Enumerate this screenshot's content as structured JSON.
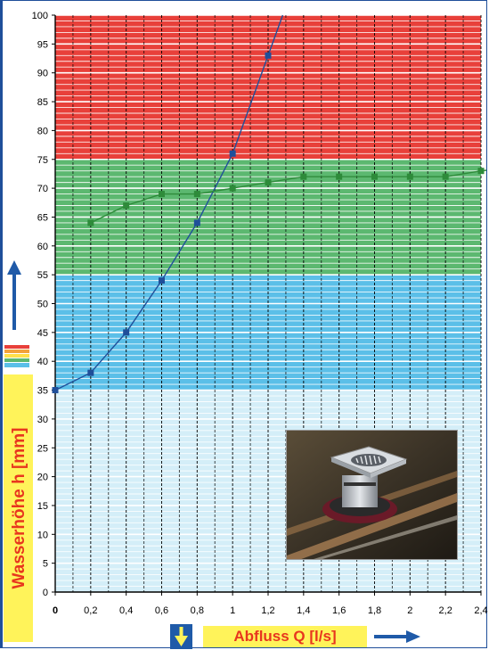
{
  "chart_data": {
    "type": "line",
    "xlabel": "Abfluss Q [l/s]",
    "ylabel": "Wasserhöhe h [mm]",
    "xlim": [
      0,
      2.4
    ],
    "ylim": [
      0,
      100
    ],
    "x_ticks": [
      "0",
      "0,2",
      "0,4",
      "0,6",
      "0,8",
      "1",
      "1,2",
      "1,4",
      "1,6",
      "1,8",
      "2",
      "2,2",
      "2,4"
    ],
    "y_ticks": [
      "0",
      "5",
      "10",
      "15",
      "20",
      "25",
      "30",
      "35",
      "40",
      "45",
      "50",
      "55",
      "60",
      "65",
      "70",
      "75",
      "80",
      "85",
      "90",
      "95",
      "100"
    ],
    "bands": [
      {
        "from": 0,
        "to": 35,
        "color": "#d4eef8"
      },
      {
        "from": 35,
        "to": 55,
        "color": "#5bbfe8"
      },
      {
        "from": 55,
        "to": 75,
        "color": "#5cb870"
      },
      {
        "from": 75,
        "to": 100,
        "color": "#e8403a"
      }
    ],
    "series": [
      {
        "color": "#1f4f9a",
        "x": [
          0,
          0.2,
          0.4,
          0.6,
          0.8,
          1.0,
          1.2
        ],
        "y": [
          35,
          38,
          45,
          54,
          64,
          76,
          93
        ]
      },
      {
        "color": "#2e8b3a",
        "x": [
          0.2,
          0.4,
          0.6,
          0.8,
          1.0,
          1.2,
          1.4,
          1.6,
          1.8,
          2.0,
          2.2,
          2.4
        ],
        "y": [
          64,
          67,
          69,
          69,
          70,
          71,
          72,
          72,
          72,
          72,
          72,
          73
        ]
      }
    ],
    "grid": true
  }
}
